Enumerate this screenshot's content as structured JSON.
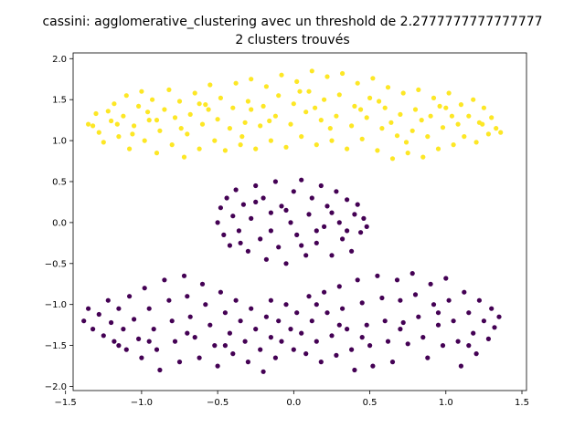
{
  "chart_data": {
    "type": "scatter",
    "title": "cassini: agglomerative_clustering avec un threshold de 2.2777777777777777",
    "subtitle": "2 clusters trouvés",
    "xlabel": "",
    "ylabel": "",
    "xlim": [
      -1.45,
      1.53
    ],
    "ylim": [
      -2.05,
      2.07
    ],
    "x_ticks": [
      -1.5,
      -1.0,
      -0.5,
      0.0,
      0.5,
      1.0,
      1.5
    ],
    "x_tick_labels": [
      "−1.5",
      "−1.0",
      "−0.5",
      "0.0",
      "0.5",
      "1.0",
      "1.5"
    ],
    "y_ticks": [
      -2.0,
      -1.5,
      -1.0,
      -0.5,
      0.0,
      0.5,
      1.0,
      1.5,
      2.0
    ],
    "y_tick_labels": [
      "−2.0",
      "−1.5",
      "−1.0",
      "−0.5",
      "0.0",
      "0.5",
      "1.0",
      "1.5",
      "2.0"
    ],
    "grid": false,
    "legend": "none",
    "series": [
      {
        "color": "#fde725",
        "points": [
          [
            -1.35,
            1.2
          ],
          [
            -1.3,
            1.33
          ],
          [
            -1.28,
            1.1
          ],
          [
            -1.25,
            0.98
          ],
          [
            -1.22,
            1.36
          ],
          [
            -1.2,
            1.24
          ],
          [
            -1.18,
            1.45
          ],
          [
            -1.15,
            1.05
          ],
          [
            -1.12,
            1.3
          ],
          [
            -1.1,
            1.55
          ],
          [
            -1.08,
            0.9
          ],
          [
            -1.05,
            1.18
          ],
          [
            -1.02,
            1.42
          ],
          [
            -1.0,
            1.6
          ],
          [
            -0.98,
            1.0
          ],
          [
            -0.95,
            1.25
          ],
          [
            -0.93,
            1.5
          ],
          [
            -0.9,
            0.85
          ],
          [
            -0.88,
            1.12
          ],
          [
            -0.85,
            1.38
          ],
          [
            -0.82,
            1.62
          ],
          [
            -0.8,
            0.95
          ],
          [
            -0.78,
            1.28
          ],
          [
            -0.75,
            1.48
          ],
          [
            -0.72,
            0.8
          ],
          [
            -0.7,
            1.08
          ],
          [
            -0.68,
            1.32
          ],
          [
            -0.65,
            1.58
          ],
          [
            -0.62,
            0.9
          ],
          [
            -0.6,
            1.2
          ],
          [
            -0.58,
            1.44
          ],
          [
            -0.55,
            1.68
          ],
          [
            -0.52,
            1.0
          ],
          [
            -0.5,
            1.26
          ],
          [
            -0.48,
            1.52
          ],
          [
            -0.45,
            0.88
          ],
          [
            -0.42,
            1.15
          ],
          [
            -0.4,
            1.4
          ],
          [
            -0.38,
            1.7
          ],
          [
            -0.35,
            0.95
          ],
          [
            -0.32,
            1.22
          ],
          [
            -0.3,
            1.48
          ],
          [
            -0.28,
            1.75
          ],
          [
            -0.25,
            0.9
          ],
          [
            -0.22,
            1.18
          ],
          [
            -0.2,
            1.42
          ],
          [
            -0.18,
            1.66
          ],
          [
            -0.15,
            1.0
          ],
          [
            -0.12,
            1.3
          ],
          [
            -0.1,
            1.55
          ],
          [
            -0.08,
            1.8
          ],
          [
            -0.05,
            0.92
          ],
          [
            -0.02,
            1.2
          ],
          [
            0.0,
            1.45
          ],
          [
            0.02,
            1.72
          ],
          [
            0.05,
            1.05
          ],
          [
            0.08,
            1.35
          ],
          [
            0.1,
            1.6
          ],
          [
            0.12,
            1.85
          ],
          [
            0.15,
            0.95
          ],
          [
            0.18,
            1.25
          ],
          [
            0.2,
            1.5
          ],
          [
            0.22,
            1.78
          ],
          [
            0.25,
            1.0
          ],
          [
            0.28,
            1.3
          ],
          [
            0.3,
            1.56
          ],
          [
            0.32,
            1.82
          ],
          [
            0.35,
            0.9
          ],
          [
            0.38,
            1.18
          ],
          [
            0.4,
            1.42
          ],
          [
            0.42,
            1.7
          ],
          [
            0.45,
            1.02
          ],
          [
            0.48,
            1.28
          ],
          [
            0.5,
            1.52
          ],
          [
            0.52,
            1.76
          ],
          [
            0.55,
            0.88
          ],
          [
            0.58,
            1.15
          ],
          [
            0.6,
            1.4
          ],
          [
            0.62,
            1.65
          ],
          [
            0.65,
            0.78
          ],
          [
            0.68,
            1.06
          ],
          [
            0.7,
            1.32
          ],
          [
            0.72,
            1.58
          ],
          [
            0.75,
            0.85
          ],
          [
            0.78,
            1.12
          ],
          [
            0.8,
            1.38
          ],
          [
            0.82,
            1.62
          ],
          [
            0.85,
            0.8
          ],
          [
            0.88,
            1.05
          ],
          [
            0.9,
            1.3
          ],
          [
            0.92,
            1.52
          ],
          [
            0.95,
            0.9
          ],
          [
            0.98,
            1.16
          ],
          [
            1.0,
            1.4
          ],
          [
            1.02,
            1.58
          ],
          [
            1.05,
            0.95
          ],
          [
            1.08,
            1.2
          ],
          [
            1.1,
            1.44
          ],
          [
            1.12,
            1.05
          ],
          [
            1.15,
            1.3
          ],
          [
            1.18,
            1.5
          ],
          [
            1.2,
            0.98
          ],
          [
            1.22,
            1.22
          ],
          [
            1.25,
            1.4
          ],
          [
            1.28,
            1.08
          ],
          [
            1.3,
            1.28
          ],
          [
            1.33,
            1.15
          ],
          [
            1.36,
            1.1
          ],
          [
            -1.32,
            1.18
          ],
          [
            -1.16,
            1.2
          ],
          [
            -0.96,
            1.35
          ],
          [
            -0.74,
            1.15
          ],
          [
            -0.56,
            1.38
          ],
          [
            -0.34,
            1.05
          ],
          [
            -0.16,
            1.24
          ],
          [
            0.04,
            1.6
          ],
          [
            0.24,
            1.15
          ],
          [
            0.44,
            1.38
          ],
          [
            0.64,
            1.22
          ],
          [
            0.84,
            1.25
          ],
          [
            1.04,
            1.3
          ],
          [
            1.24,
            1.2
          ],
          [
            -0.9,
            1.25
          ],
          [
            -0.62,
            1.45
          ],
          [
            -0.28,
            1.38
          ],
          [
            0.14,
            1.4
          ],
          [
            0.56,
            1.48
          ],
          [
            0.96,
            1.42
          ],
          [
            -1.06,
            1.08
          ],
          [
            0.74,
            0.98
          ]
        ]
      },
      {
        "color": "#440154",
        "points": [
          [
            -0.5,
            0.0
          ],
          [
            -0.48,
            0.18
          ],
          [
            -0.46,
            -0.15
          ],
          [
            -0.44,
            0.3
          ],
          [
            -0.42,
            -0.28
          ],
          [
            -0.4,
            0.08
          ],
          [
            -0.38,
            0.4
          ],
          [
            -0.36,
            -0.1
          ],
          [
            -0.33,
            0.22
          ],
          [
            -0.3,
            -0.35
          ],
          [
            -0.28,
            0.05
          ],
          [
            -0.25,
            0.45
          ],
          [
            -0.22,
            -0.2
          ],
          [
            -0.2,
            0.3
          ],
          [
            -0.18,
            -0.45
          ],
          [
            -0.15,
            0.12
          ],
          [
            -0.12,
            0.5
          ],
          [
            -0.1,
            -0.3
          ],
          [
            -0.08,
            0.2
          ],
          [
            -0.05,
            -0.5
          ],
          [
            -0.02,
            0.0
          ],
          [
            0.0,
            0.38
          ],
          [
            0.02,
            -0.15
          ],
          [
            0.05,
            0.52
          ],
          [
            0.08,
            -0.4
          ],
          [
            0.1,
            0.1
          ],
          [
            0.12,
            0.3
          ],
          [
            0.15,
            -0.25
          ],
          [
            0.18,
            0.45
          ],
          [
            0.2,
            -0.05
          ],
          [
            0.22,
            0.2
          ],
          [
            0.25,
            -0.4
          ],
          [
            0.28,
            0.38
          ],
          [
            0.3,
            0.0
          ],
          [
            0.32,
            -0.2
          ],
          [
            0.35,
            0.28
          ],
          [
            0.38,
            -0.35
          ],
          [
            0.4,
            0.1
          ],
          [
            0.42,
            0.22
          ],
          [
            0.44,
            -0.12
          ],
          [
            0.46,
            0.05
          ],
          [
            0.48,
            -0.05
          ],
          [
            -0.35,
            -0.25
          ],
          [
            -0.05,
            0.15
          ],
          [
            0.15,
            -0.1
          ],
          [
            -0.25,
            0.25
          ],
          [
            0.05,
            -0.28
          ],
          [
            0.25,
            0.12
          ],
          [
            -0.15,
            -0.1
          ],
          [
            0.35,
            -0.1
          ],
          [
            -1.38,
            -1.2
          ],
          [
            -1.35,
            -1.05
          ],
          [
            -1.32,
            -1.3
          ],
          [
            -1.28,
            -1.12
          ],
          [
            -1.25,
            -1.38
          ],
          [
            -1.22,
            -0.95
          ],
          [
            -1.2,
            -1.22
          ],
          [
            -1.18,
            -1.45
          ],
          [
            -1.15,
            -1.05
          ],
          [
            -1.12,
            -1.3
          ],
          [
            -1.1,
            -1.55
          ],
          [
            -1.08,
            -0.9
          ],
          [
            -1.05,
            -1.18
          ],
          [
            -1.02,
            -1.42
          ],
          [
            -1.0,
            -1.65
          ],
          [
            -0.98,
            -0.8
          ],
          [
            -0.95,
            -1.05
          ],
          [
            -0.92,
            -1.3
          ],
          [
            -0.9,
            -1.55
          ],
          [
            -0.88,
            -1.8
          ],
          [
            -0.85,
            -0.7
          ],
          [
            -0.82,
            -0.95
          ],
          [
            -0.8,
            -1.2
          ],
          [
            -0.78,
            -1.45
          ],
          [
            -0.75,
            -1.7
          ],
          [
            -0.72,
            -0.65
          ],
          [
            -0.7,
            -0.9
          ],
          [
            -0.68,
            -1.15
          ],
          [
            -0.65,
            -1.4
          ],
          [
            -0.62,
            -1.65
          ],
          [
            -0.6,
            -0.75
          ],
          [
            -0.58,
            -1.0
          ],
          [
            -0.55,
            -1.25
          ],
          [
            -0.52,
            -1.5
          ],
          [
            -0.5,
            -1.75
          ],
          [
            -0.48,
            -0.85
          ],
          [
            -0.45,
            -1.1
          ],
          [
            -0.42,
            -1.35
          ],
          [
            -0.4,
            -1.6
          ],
          [
            -0.38,
            -0.95
          ],
          [
            -0.35,
            -1.2
          ],
          [
            -0.32,
            -1.45
          ],
          [
            -0.3,
            -1.7
          ],
          [
            -0.28,
            -1.05
          ],
          [
            -0.25,
            -1.3
          ],
          [
            -0.22,
            -1.55
          ],
          [
            -0.2,
            -1.82
          ],
          [
            -0.18,
            -1.15
          ],
          [
            -0.15,
            -1.4
          ],
          [
            -0.12,
            -1.65
          ],
          [
            -0.1,
            -1.2
          ],
          [
            -0.08,
            -1.45
          ],
          [
            -0.05,
            -1.0
          ],
          [
            -0.02,
            -1.3
          ],
          [
            0.0,
            -1.55
          ],
          [
            0.02,
            -1.1
          ],
          [
            0.05,
            -1.35
          ],
          [
            0.08,
            -1.6
          ],
          [
            0.1,
            -0.9
          ],
          [
            0.12,
            -1.2
          ],
          [
            0.15,
            -1.45
          ],
          [
            0.18,
            -1.7
          ],
          [
            0.2,
            -0.85
          ],
          [
            0.22,
            -1.1
          ],
          [
            0.25,
            -1.38
          ],
          [
            0.28,
            -1.62
          ],
          [
            0.3,
            -0.78
          ],
          [
            0.32,
            -1.05
          ],
          [
            0.35,
            -1.3
          ],
          [
            0.38,
            -1.55
          ],
          [
            0.4,
            -1.8
          ],
          [
            0.42,
            -0.7
          ],
          [
            0.45,
            -0.98
          ],
          [
            0.48,
            -1.25
          ],
          [
            0.5,
            -1.5
          ],
          [
            0.52,
            -1.75
          ],
          [
            0.55,
            -0.65
          ],
          [
            0.58,
            -0.92
          ],
          [
            0.6,
            -1.2
          ],
          [
            0.62,
            -1.45
          ],
          [
            0.65,
            -1.7
          ],
          [
            0.68,
            -0.7
          ],
          [
            0.7,
            -0.95
          ],
          [
            0.72,
            -1.22
          ],
          [
            0.75,
            -1.48
          ],
          [
            0.78,
            -0.62
          ],
          [
            0.8,
            -0.88
          ],
          [
            0.82,
            -1.15
          ],
          [
            0.85,
            -1.4
          ],
          [
            0.88,
            -1.65
          ],
          [
            0.9,
            -0.75
          ],
          [
            0.92,
            -1.0
          ],
          [
            0.95,
            -1.25
          ],
          [
            0.98,
            -1.5
          ],
          [
            1.0,
            -0.68
          ],
          [
            1.02,
            -0.95
          ],
          [
            1.05,
            -1.2
          ],
          [
            1.08,
            -1.45
          ],
          [
            1.1,
            -1.75
          ],
          [
            1.12,
            -0.85
          ],
          [
            1.15,
            -1.1
          ],
          [
            1.18,
            -1.35
          ],
          [
            1.2,
            -1.6
          ],
          [
            1.22,
            -0.95
          ],
          [
            1.25,
            -1.2
          ],
          [
            1.28,
            -1.42
          ],
          [
            1.3,
            -1.05
          ],
          [
            1.32,
            -1.28
          ],
          [
            1.35,
            -1.15
          ],
          [
            -0.95,
            -1.45
          ],
          [
            -0.7,
            -1.35
          ],
          [
            -0.45,
            -1.5
          ],
          [
            -0.15,
            -0.95
          ],
          [
            0.15,
            -1.0
          ],
          [
            0.45,
            -1.4
          ],
          [
            0.7,
            -1.3
          ],
          [
            0.95,
            -1.1
          ],
          [
            1.15,
            -1.5
          ],
          [
            -1.15,
            -1.5
          ],
          [
            0.3,
            -1.25
          ]
        ]
      }
    ]
  }
}
